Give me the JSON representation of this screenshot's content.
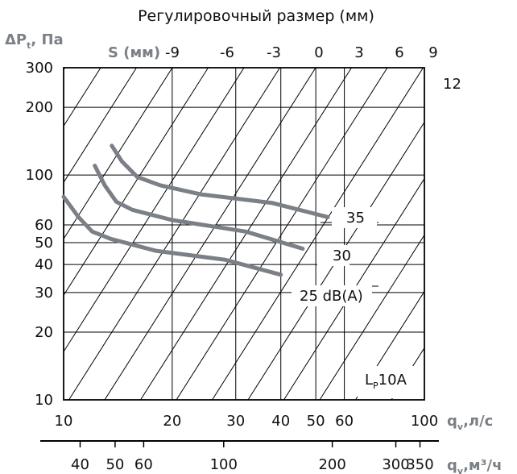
{
  "chart_data": {
    "type": "line",
    "top_title": "Регулировочный размер (мм)",
    "y_axis": {
      "label_main": "ΔP",
      "label_sub": "t",
      "label_unit": ", Па",
      "scale": "log",
      "range": [
        10,
        300
      ],
      "ticks": [
        10,
        20,
        30,
        40,
        50,
        60,
        100,
        200,
        300
      ]
    },
    "x_axis": {
      "label_main": "q",
      "label_sub": "v",
      "label_unit": ",л/с",
      "scale": "log",
      "range": [
        10,
        100
      ],
      "ticks": [
        10,
        20,
        30,
        40,
        50,
        60,
        100
      ]
    },
    "x_axis_secondary": {
      "label_main": "q",
      "label_sub": "v",
      "label_unit": ",м³/ч",
      "ticks": [
        40,
        50,
        60,
        100,
        200,
        300,
        350
      ]
    },
    "s_axis": {
      "label": "S (мм)",
      "ticks": [
        "-9",
        "-6",
        "-3",
        "0",
        "3",
        "6",
        "9"
      ],
      "right_label": "12"
    },
    "grid": true,
    "series": [
      {
        "name": "35",
        "x": [
          13.6,
          14.5,
          16,
          18.5,
          24,
          38,
          54
        ],
        "y": [
          135,
          115,
          98,
          90,
          82,
          75,
          65
        ]
      },
      {
        "name": "30",
        "x": [
          12.2,
          13,
          14,
          15.5,
          20,
          32,
          46
        ],
        "y": [
          110,
          90,
          76,
          70,
          63,
          56,
          47
        ]
      },
      {
        "name": "25 dB(A)",
        "x": [
          10,
          11,
          12,
          13.5,
          18,
          28,
          40
        ],
        "y": [
          80,
          65,
          56,
          52,
          46,
          42,
          36
        ]
      }
    ],
    "annotation": {
      "main": "L",
      "sub": "P",
      "rest": "10A"
    }
  }
}
